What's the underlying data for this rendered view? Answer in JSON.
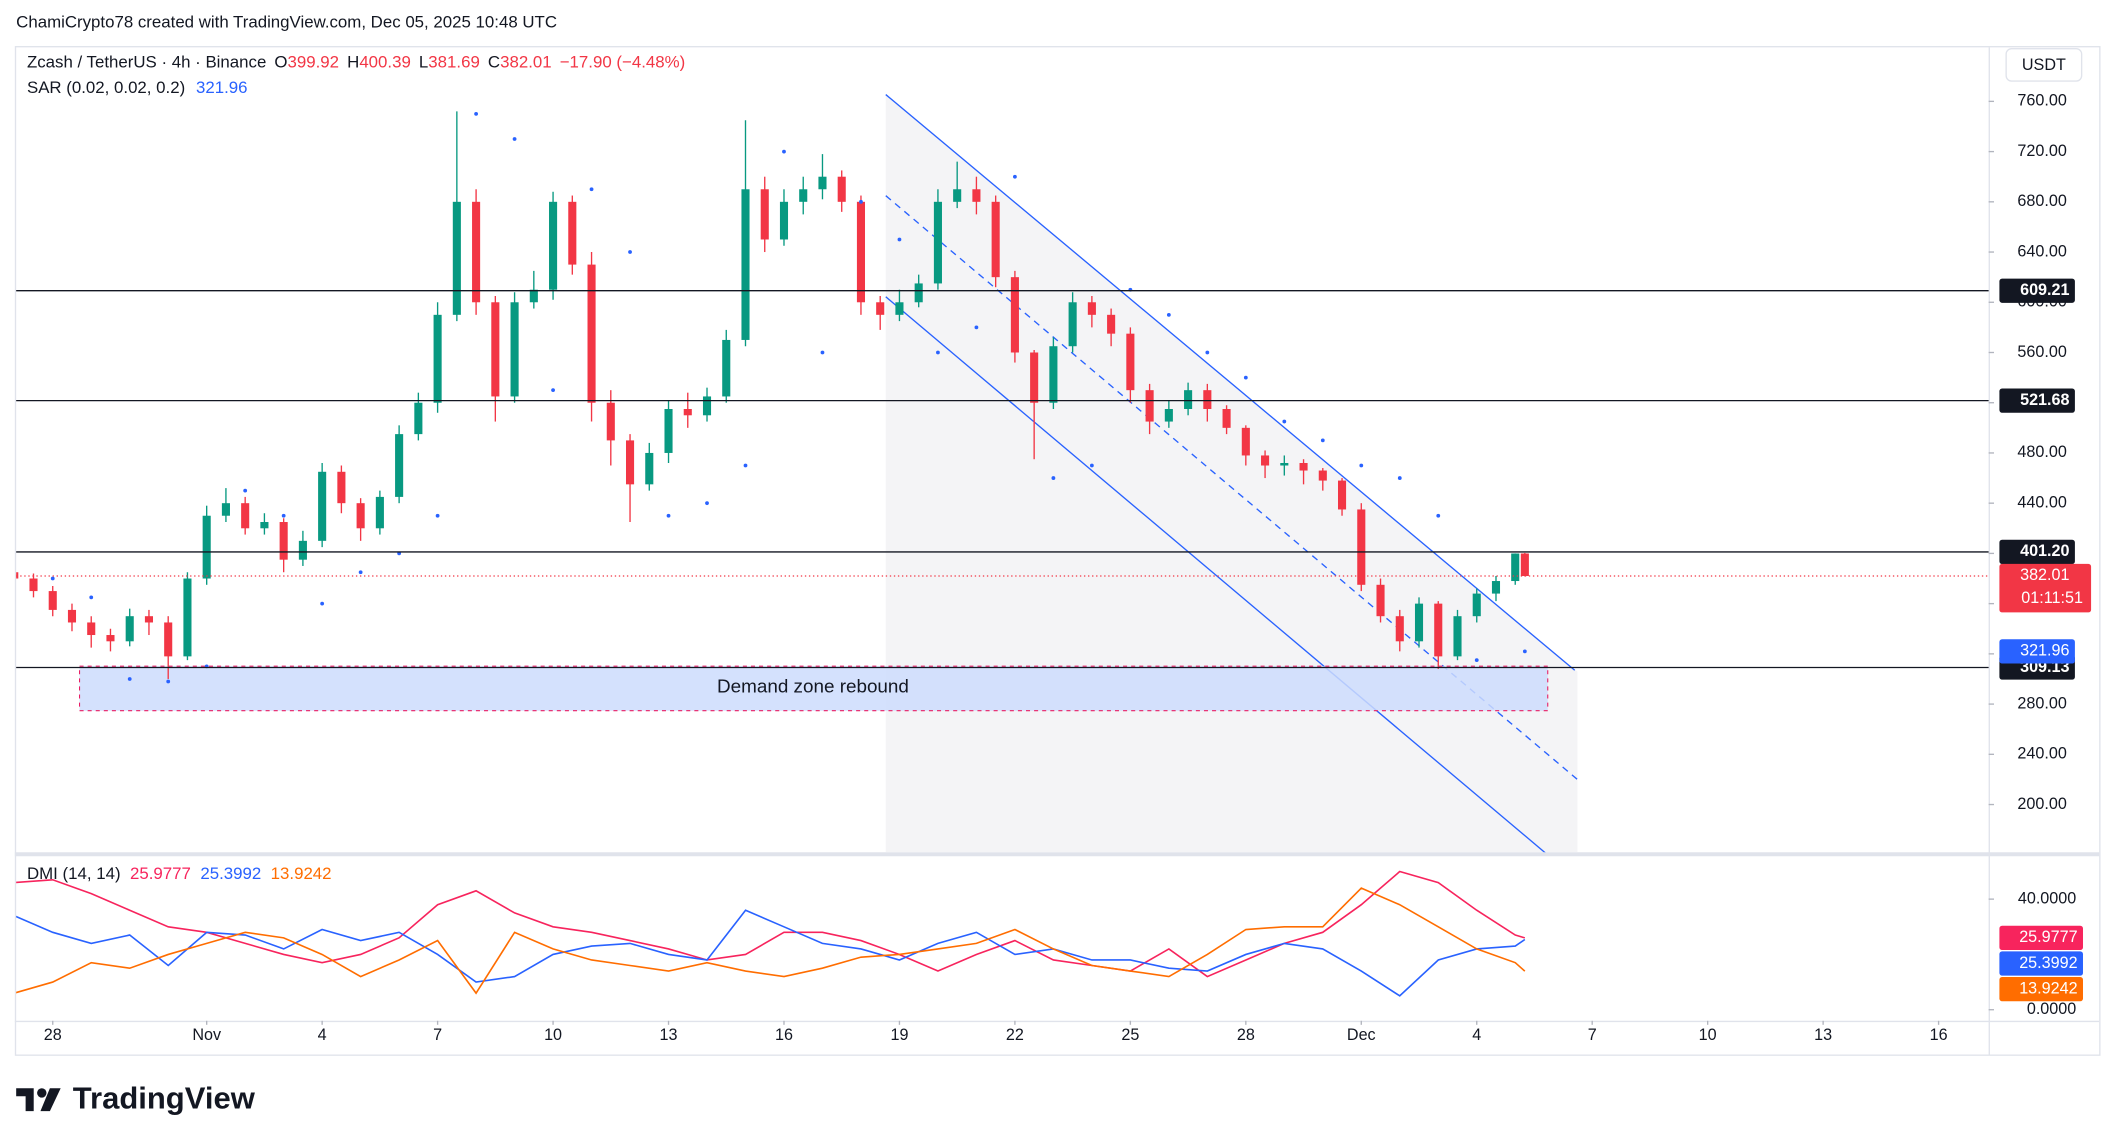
{
  "page": {
    "attribution": "ChamiCrypto78 created with TradingView.com, Dec 05, 2025 10:48 UTC",
    "brand": "TradingView",
    "currency_button": "USDT"
  },
  "chart_data": [
    {
      "type": "candlestick",
      "title": "Zcash / TetherUS · 4h · Binance",
      "ohlc_labels": [
        "O",
        "H",
        "L",
        "C"
      ],
      "change": "−17.90 (−4.48%)",
      "change_color": "#f23645",
      "countdown": "01:11:51",
      "annotation": "Demand zone rebound",
      "up_color": "#089981",
      "down_color": "#f23645",
      "x": [
        -1,
        -0.5,
        0,
        0.5,
        1,
        1.5,
        2,
        2.5,
        3,
        3.5,
        4,
        4.5,
        5,
        5.5,
        6,
        6.5,
        7,
        7.5,
        8,
        8.5,
        9,
        9.5,
        10,
        10.5,
        11,
        11.5,
        12,
        12.5,
        13,
        13.5,
        14,
        14.5,
        15,
        15.5,
        16,
        16.5,
        17,
        17.5,
        18,
        18.5,
        19,
        19.5,
        20,
        20.5,
        21,
        21.5,
        22,
        22.5,
        23,
        23.5,
        24,
        24.5,
        25,
        25.5,
        26,
        26.5,
        27,
        27.5,
        28,
        28.5,
        29,
        29.5,
        30,
        30.5,
        31,
        31.5,
        32,
        32.5,
        33,
        33.5,
        34,
        34.5,
        35,
        35.5,
        36,
        36.5,
        37,
        37.5,
        38,
        38.25
      ],
      "open": [
        385,
        380,
        370,
        355,
        345,
        335,
        330,
        350,
        345,
        318,
        380,
        430,
        440,
        420,
        425,
        395,
        410,
        465,
        440,
        420,
        445,
        495,
        520,
        590,
        680,
        600,
        525,
        600,
        610,
        680,
        630,
        520,
        490,
        455,
        480,
        515,
        510,
        525,
        570,
        690,
        650,
        680,
        690,
        700,
        680,
        600,
        590,
        600,
        615,
        680,
        690,
        680,
        620,
        560,
        520,
        565,
        600,
        590,
        575,
        530,
        505,
        515,
        530,
        515,
        500,
        478,
        470,
        472,
        466,
        458,
        435,
        375,
        350,
        330,
        360,
        318,
        350,
        368,
        378,
        399.92
      ],
      "high": [
        392,
        384,
        374,
        360,
        350,
        340,
        356,
        355,
        350,
        385,
        438,
        452,
        445,
        432,
        428,
        418,
        472,
        470,
        444,
        450,
        502,
        528,
        600,
        752,
        690,
        605,
        608,
        625,
        688,
        685,
        640,
        530,
        495,
        488,
        522,
        528,
        532,
        578,
        745,
        700,
        690,
        700,
        718,
        705,
        685,
        605,
        610,
        622,
        690,
        712,
        700,
        685,
        625,
        562,
        572,
        608,
        605,
        595,
        580,
        535,
        522,
        536,
        535,
        518,
        502,
        482,
        478,
        475,
        468,
        460,
        440,
        380,
        355,
        365,
        362,
        355,
        372,
        382,
        400,
        400.39
      ],
      "low": [
        375,
        365,
        350,
        338,
        325,
        322,
        326,
        335,
        300,
        315,
        375,
        425,
        415,
        415,
        385,
        390,
        405,
        432,
        410,
        415,
        440,
        490,
        512,
        585,
        590,
        505,
        520,
        595,
        602,
        622,
        505,
        470,
        425,
        450,
        472,
        500,
        505,
        520,
        565,
        640,
        645,
        670,
        682,
        672,
        590,
        578,
        585,
        596,
        610,
        675,
        670,
        612,
        552,
        475,
        515,
        560,
        580,
        565,
        520,
        495,
        500,
        510,
        505,
        495,
        470,
        460,
        462,
        455,
        450,
        430,
        370,
        345,
        322,
        325,
        308,
        315,
        345,
        362,
        375,
        381.69
      ],
      "close": [
        380,
        370,
        355,
        345,
        335,
        330,
        350,
        345,
        318,
        380,
        430,
        440,
        420,
        425,
        395,
        410,
        465,
        440,
        420,
        445,
        495,
        520,
        590,
        680,
        600,
        525,
        600,
        610,
        680,
        630,
        520,
        490,
        455,
        480,
        515,
        510,
        525,
        570,
        690,
        650,
        680,
        690,
        700,
        680,
        600,
        590,
        600,
        615,
        680,
        690,
        680,
        620,
        560,
        520,
        565,
        600,
        590,
        575,
        530,
        505,
        515,
        530,
        515,
        500,
        478,
        470,
        472,
        466,
        458,
        435,
        375,
        350,
        330,
        360,
        318,
        350,
        368,
        378,
        399.92,
        382.01
      ],
      "sar": {
        "title": "SAR (0.02, 0.02, 0.2)",
        "color": "#2962ff",
        "x": [
          -1,
          0,
          1,
          2,
          3,
          4,
          5,
          6,
          7,
          8,
          9,
          10,
          11,
          12,
          13,
          14,
          15,
          16,
          17,
          18,
          19,
          20,
          21,
          22,
          23,
          24,
          25,
          26,
          27,
          28,
          29,
          30,
          31,
          32,
          33,
          34,
          35,
          36,
          37,
          38.25
        ],
        "values": [
          400,
          380,
          365,
          300,
          298,
          310,
          450,
          430,
          360,
          385,
          400,
          430,
          750,
          730,
          530,
          690,
          640,
          430,
          440,
          470,
          720,
          560,
          680,
          650,
          560,
          580,
          700,
          460,
          470,
          610,
          590,
          560,
          540,
          505,
          490,
          470,
          460,
          430,
          315,
          321.96
        ]
      },
      "levels": [
        609.21,
        521.68,
        {
          "value": 401.2,
          "label": "401.20"
        },
        309.13
      ],
      "level_color": "#131722",
      "xlim": [
        -0.95,
        50.3
      ],
      "xticks": [
        {
          "value": 0,
          "label": "28"
        },
        {
          "value": 4,
          "label": "Nov"
        },
        {
          "value": 7,
          "label": "4"
        },
        {
          "value": 10,
          "label": "7"
        },
        {
          "value": 13,
          "label": "10"
        },
        {
          "value": 16,
          "label": "13"
        },
        {
          "value": 19,
          "label": "16"
        },
        {
          "value": 22,
          "label": "19"
        },
        {
          "value": 25,
          "label": "22"
        },
        {
          "value": 28,
          "label": "25"
        },
        {
          "value": 31,
          "label": "28"
        },
        {
          "value": 34,
          "label": "Dec"
        },
        {
          "value": 37,
          "label": "4"
        },
        {
          "value": 40,
          "label": "7"
        },
        {
          "value": 43,
          "label": "10"
        },
        {
          "value": 46,
          "label": "13"
        },
        {
          "value": 49,
          "label": "16"
        }
      ],
      "ylim": [
        162,
        803
      ],
      "yticks": [
        {
          "value": 200,
          "label": "200.00"
        },
        {
          "value": 240,
          "label": "240.00"
        },
        {
          "value": 280,
          "label": "280.00"
        },
        {
          "value": 320,
          "label": "320.00"
        },
        {
          "value": 360,
          "label": "360.00"
        },
        {
          "value": 400,
          "label": "400.00"
        },
        {
          "value": 440,
          "label": "440.00"
        },
        {
          "value": 480,
          "label": "480.00"
        },
        {
          "value": 520,
          "label": "520.00"
        },
        {
          "value": 560,
          "label": "560.00"
        },
        {
          "value": 600,
          "label": "600.00"
        },
        {
          "value": 640,
          "label": "640.00"
        },
        {
          "value": 680,
          "label": "680.00"
        },
        {
          "value": 720,
          "label": "720.00"
        },
        {
          "value": 760,
          "label": "760.00"
        }
      ]
    },
    {
      "type": "line",
      "title": "DMI (14, 14)",
      "x": [
        -1,
        0,
        1,
        2,
        3,
        4,
        5,
        6,
        7,
        8,
        9,
        10,
        11,
        12,
        13,
        14,
        15,
        16,
        17,
        18,
        19,
        20,
        21,
        22,
        23,
        24,
        25,
        26,
        27,
        28,
        29,
        30,
        31,
        32,
        33,
        34,
        35,
        36,
        37,
        38,
        38.25
      ],
      "series": [
        {
          "color": "#f7245d",
          "values": [
            46,
            47,
            42,
            36,
            30,
            28,
            24,
            20,
            17,
            20,
            26,
            38,
            43,
            35,
            30,
            28,
            25,
            22,
            18,
            20,
            28,
            28,
            25,
            20,
            14,
            20,
            25,
            18,
            16,
            14,
            22,
            12,
            18,
            24,
            28,
            38,
            50,
            46,
            36,
            27,
            25.9777
          ]
        },
        {
          "color": "#2962ff",
          "values": [
            34,
            28,
            24,
            27,
            16,
            28,
            27,
            22,
            29,
            25,
            28,
            20,
            10,
            12,
            20,
            23,
            24,
            20,
            18,
            36,
            30,
            24,
            22,
            18,
            24,
            28,
            20,
            22,
            18,
            18,
            15,
            14,
            20,
            24,
            22,
            14,
            5,
            18,
            22,
            23,
            25.3992
          ]
        },
        {
          "color": "#ff6d00",
          "values": [
            6,
            10,
            17,
            15,
            20,
            24,
            28,
            26,
            20,
            12,
            18,
            25,
            6,
            28,
            22,
            18,
            16,
            14,
            17,
            14,
            12,
            15,
            19,
            20,
            22,
            24,
            29,
            22,
            16,
            14,
            12,
            20,
            29,
            30,
            30,
            44,
            38,
            30,
            22,
            17,
            13.9242
          ]
        }
      ],
      "xlim": [
        -0.95,
        50.3
      ],
      "ylim": [
        -4,
        55
      ],
      "yticks": [
        {
          "value": 40,
          "label": "40.0000"
        },
        {
          "value": 0,
          "label": "0.0000"
        }
      ]
    }
  ]
}
